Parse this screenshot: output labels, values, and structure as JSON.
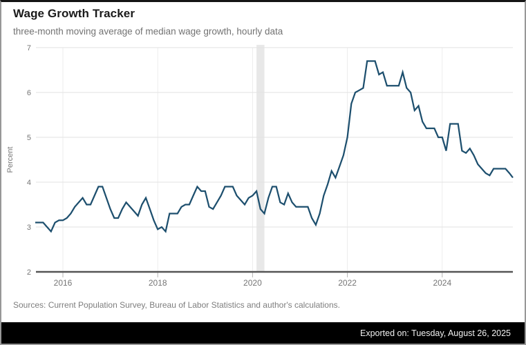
{
  "header": {
    "title": "Wage Growth Tracker",
    "subtitle": "three-month moving average of median wage growth, hourly data"
  },
  "footer": {
    "sources": "Sources: Current Population Survey, Bureau of Labor Statistics and author's calculations.",
    "exported_on": "Exported on: Tuesday, August 26, 2025"
  },
  "chart_data": {
    "type": "line",
    "title": "Wage Growth Tracker",
    "subtitle": "three-month moving average of median wage growth, hourly data",
    "ylabel": "Percent",
    "ylim": [
      2,
      7
    ],
    "y_ticks": [
      2,
      3,
      4,
      5,
      6,
      7
    ],
    "x_tick_labels": [
      "2016",
      "2018",
      "2020",
      "2022",
      "2024"
    ],
    "x_tick_years": [
      2016,
      2018,
      2020,
      2022,
      2024
    ],
    "x_start_month": "2015-06",
    "x_end_month": "2025-07",
    "grid": true,
    "legend_position": "none",
    "recession_band": {
      "start": "2020-02",
      "end": "2020-04"
    },
    "colors": {
      "line": "#1d4f6e",
      "band": "#e8e8e8",
      "grid_h": "#e2e2e2",
      "grid_v": "#ececec",
      "axis": "#555555",
      "tick": "#b5b5b5",
      "tick_label": "#757575"
    },
    "series": [
      {
        "name": "Median wage growth (3-month moving average)",
        "color": "#1d4f6e",
        "monthly_values": [
          3.1,
          3.1,
          3.1,
          3.0,
          2.9,
          3.1,
          3.15,
          3.15,
          3.2,
          3.3,
          3.45,
          3.55,
          3.65,
          3.5,
          3.5,
          3.7,
          3.9,
          3.9,
          3.65,
          3.4,
          3.2,
          3.2,
          3.4,
          3.55,
          3.45,
          3.35,
          3.25,
          3.5,
          3.65,
          3.4,
          3.15,
          2.95,
          3.0,
          2.9,
          3.3,
          3.3,
          3.3,
          3.45,
          3.5,
          3.5,
          3.7,
          3.9,
          3.8,
          3.8,
          3.45,
          3.4,
          3.55,
          3.7,
          3.9,
          3.9,
          3.9,
          3.7,
          3.6,
          3.5,
          3.65,
          3.7,
          3.8,
          3.4,
          3.3,
          3.65,
          3.9,
          3.9,
          3.55,
          3.5,
          3.75,
          3.55,
          3.45,
          3.45,
          3.45,
          3.45,
          3.2,
          3.05,
          3.3,
          3.7,
          3.95,
          4.25,
          4.1,
          4.35,
          4.6,
          5.0,
          5.75,
          6.0,
          6.05,
          6.1,
          6.7,
          6.7,
          6.7,
          6.4,
          6.45,
          6.15,
          6.15,
          6.15,
          6.15,
          6.45,
          6.1,
          6.0,
          5.6,
          5.7,
          5.35,
          5.2,
          5.2,
          5.2,
          5.0,
          5.0,
          4.7,
          5.3,
          5.3,
          5.3,
          4.7,
          4.65,
          4.75,
          4.6,
          4.4,
          4.3,
          4.2,
          4.15,
          4.3,
          4.3,
          4.3,
          4.3,
          4.2,
          4.1
        ]
      }
    ]
  }
}
